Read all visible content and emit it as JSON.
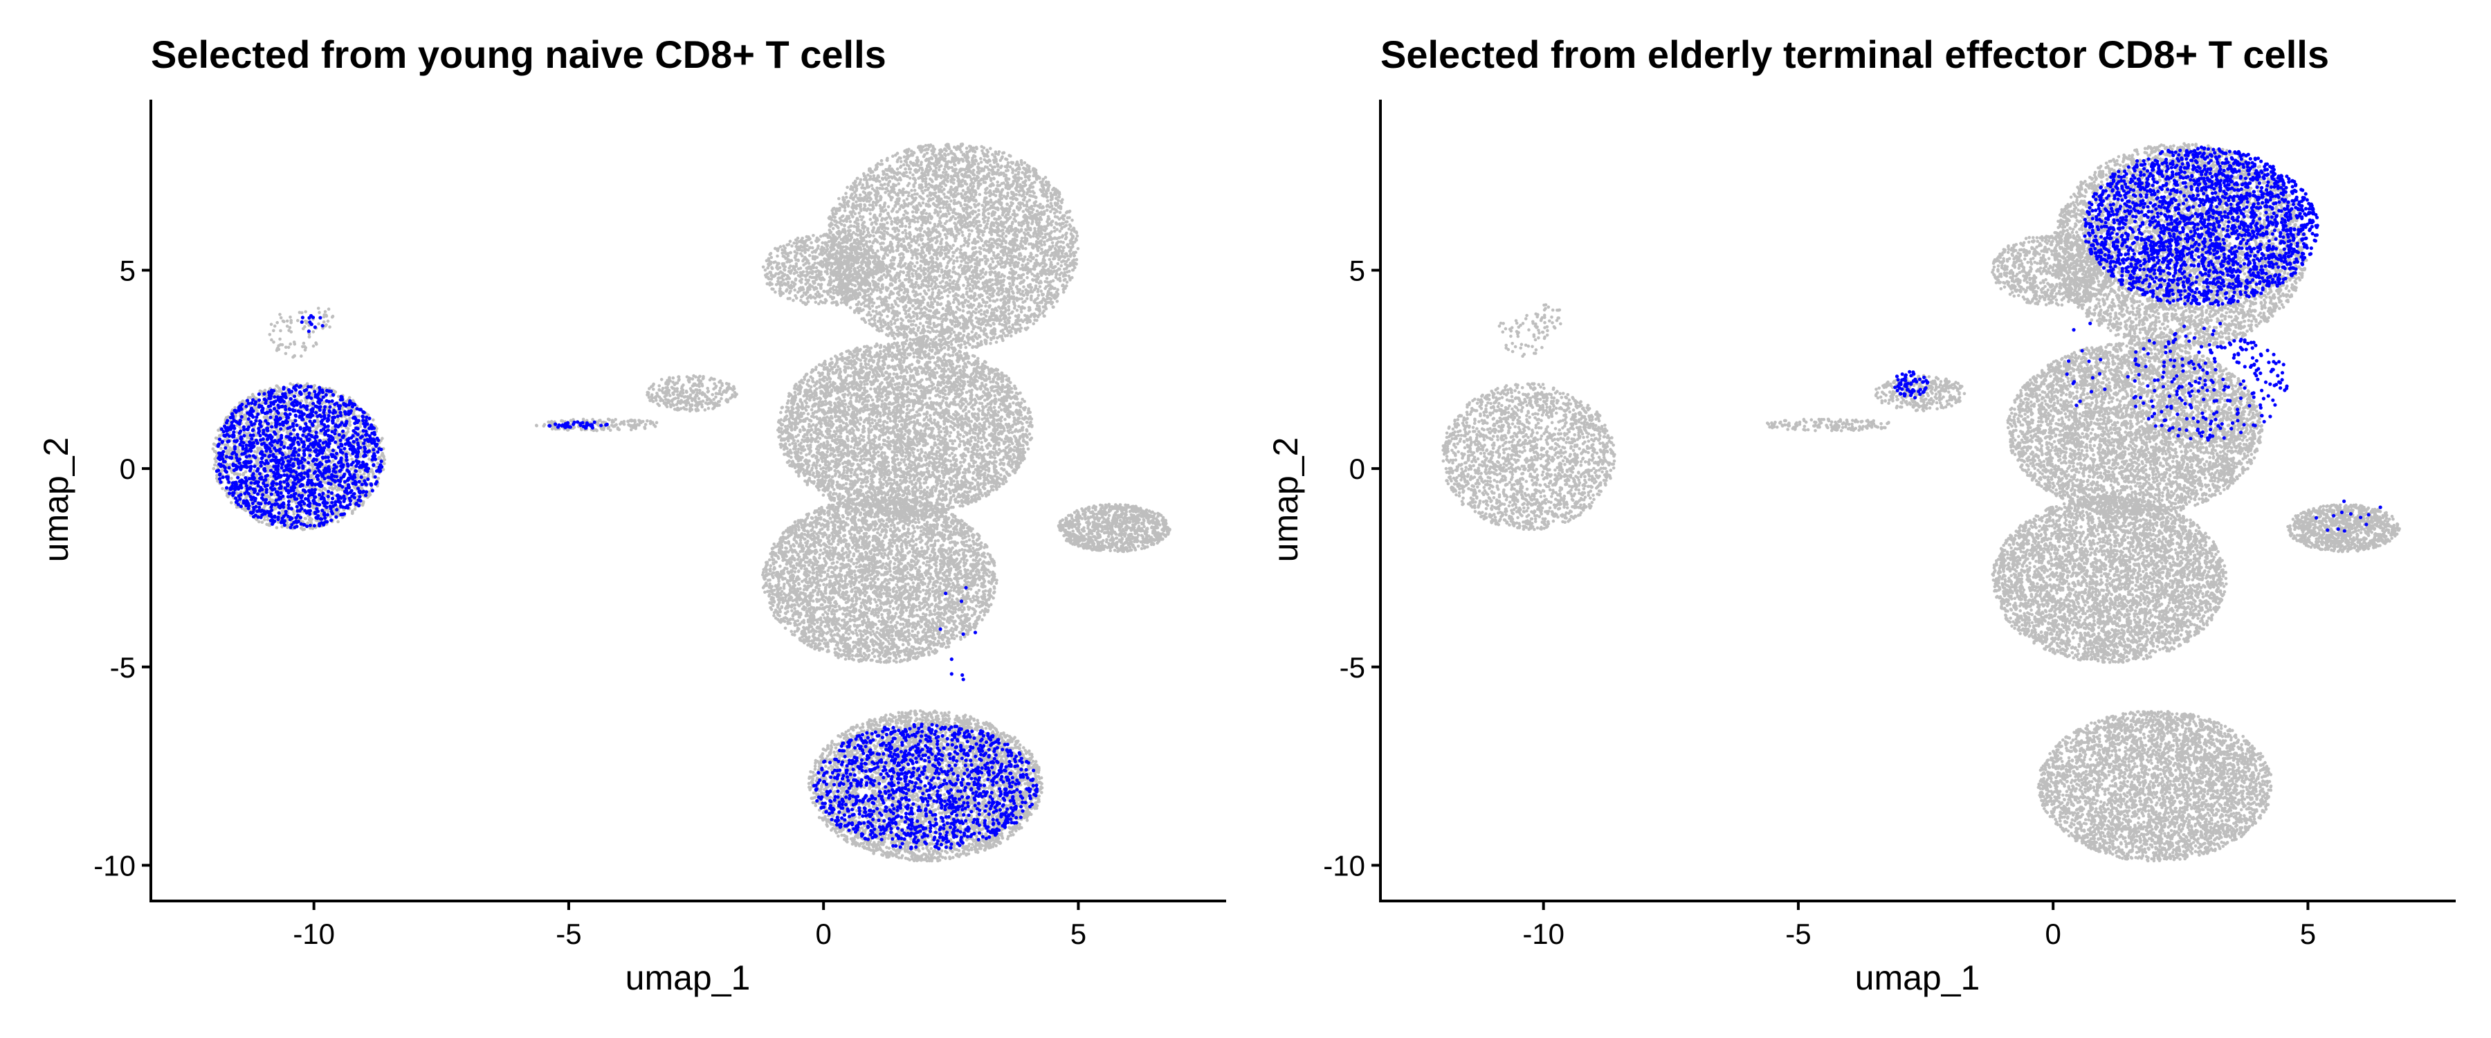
{
  "chart_data": [
    {
      "type": "scatter",
      "title": "Selected from young naive CD8+ T cells",
      "xlabel": "umap_1",
      "ylabel": "umap_2",
      "xlim": [
        -13.2,
        7.9
      ],
      "ylim": [
        -10.9,
        9.3
      ],
      "xticks": [
        -10,
        -5,
        0,
        5
      ],
      "xtick_labels": [
        "-10",
        "-5",
        "0",
        "5"
      ],
      "yticks": [
        -10,
        -5,
        0,
        5
      ],
      "ytick_labels": [
        "-10",
        "-5",
        "0",
        "5"
      ],
      "grid": false,
      "legend": "none",
      "colors": {
        "background_cells": "#bebebe",
        "selected_cells": "#0000ff"
      },
      "series": [
        {
          "role": "all_cells",
          "clusters": [
            {
              "cx": -10.3,
              "cy": 0.3,
              "rx": 1.7,
              "ry": 1.85,
              "n": 2000
            },
            {
              "cx": -10.4,
              "cy": 3.4,
              "rx": 0.5,
              "ry": 0.6,
              "n": 60
            },
            {
              "cx": -9.9,
              "cy": 3.8,
              "rx": 0.3,
              "ry": 0.35,
              "n": 25
            },
            {
              "cx": 2.5,
              "cy": 5.6,
              "rx": 2.5,
              "ry": 2.6,
              "n": 5000
            },
            {
              "cx": 0.0,
              "cy": 5.0,
              "rx": 1.2,
              "ry": 0.9,
              "n": 800
            },
            {
              "cx": 1.6,
              "cy": 1.0,
              "rx": 2.5,
              "ry": 2.2,
              "n": 5000
            },
            {
              "cx": 1.1,
              "cy": -2.8,
              "rx": 2.3,
              "ry": 2.1,
              "n": 4500
            },
            {
              "cx": 2.0,
              "cy": -8.0,
              "rx": 2.3,
              "ry": 1.9,
              "n": 4000
            },
            {
              "cx": 5.7,
              "cy": -1.5,
              "rx": 1.1,
              "ry": 0.6,
              "n": 900
            },
            {
              "cx": -2.6,
              "cy": 1.9,
              "rx": 0.9,
              "ry": 0.45,
              "n": 300
            },
            {
              "cx": -4.4,
              "cy": 1.1,
              "rx": 1.3,
              "ry": 0.15,
              "n": 150
            }
          ]
        },
        {
          "role": "selected_cells",
          "clusters": [
            {
              "cx": -10.3,
              "cy": 0.3,
              "rx": 1.65,
              "ry": 1.8,
              "n": 1500
            },
            {
              "cx": -10.0,
              "cy": 3.7,
              "rx": 0.3,
              "ry": 0.3,
              "n": 12
            },
            {
              "cx": 2.0,
              "cy": -8.0,
              "rx": 2.2,
              "ry": 1.6,
              "n": 1300
            },
            {
              "cx": -4.8,
              "cy": 1.1,
              "rx": 0.6,
              "ry": 0.08,
              "n": 40
            },
            {
              "cx": 2.6,
              "cy": -4.2,
              "rx": 0.4,
              "ry": 1.4,
              "n": 10
            }
          ]
        }
      ]
    },
    {
      "type": "scatter",
      "title": "Selected from elderly terminal effector CD8+ T cells",
      "xlabel": "umap_1",
      "ylabel": "umap_2",
      "xlim": [
        -13.2,
        7.9
      ],
      "ylim": [
        -10.9,
        9.3
      ],
      "xticks": [
        -10,
        -5,
        0,
        5
      ],
      "xtick_labels": [
        "-10",
        "-5",
        "0",
        "5"
      ],
      "yticks": [
        -10,
        -5,
        0,
        5
      ],
      "ytick_labels": [
        "-10",
        "-5",
        "0",
        "5"
      ],
      "grid": false,
      "legend": "none",
      "colors": {
        "background_cells": "#bebebe",
        "selected_cells": "#0000ff"
      },
      "series": [
        {
          "role": "all_cells",
          "clusters": [
            {
              "cx": -10.3,
              "cy": 0.3,
              "rx": 1.7,
              "ry": 1.85,
              "n": 2000
            },
            {
              "cx": -10.4,
              "cy": 3.4,
              "rx": 0.5,
              "ry": 0.6,
              "n": 60
            },
            {
              "cx": -9.9,
              "cy": 3.8,
              "rx": 0.3,
              "ry": 0.35,
              "n": 25
            },
            {
              "cx": 2.5,
              "cy": 5.6,
              "rx": 2.5,
              "ry": 2.6,
              "n": 5000
            },
            {
              "cx": 0.0,
              "cy": 5.0,
              "rx": 1.2,
              "ry": 0.9,
              "n": 800
            },
            {
              "cx": 1.6,
              "cy": 1.0,
              "rx": 2.5,
              "ry": 2.2,
              "n": 5000
            },
            {
              "cx": 1.1,
              "cy": -2.8,
              "rx": 2.3,
              "ry": 2.1,
              "n": 4500
            },
            {
              "cx": 2.0,
              "cy": -8.0,
              "rx": 2.3,
              "ry": 1.9,
              "n": 4000
            },
            {
              "cx": 5.7,
              "cy": -1.5,
              "rx": 1.1,
              "ry": 0.6,
              "n": 900
            },
            {
              "cx": -2.6,
              "cy": 1.9,
              "rx": 0.9,
              "ry": 0.45,
              "n": 300
            },
            {
              "cx": -4.4,
              "cy": 1.1,
              "rx": 1.3,
              "ry": 0.15,
              "n": 150
            }
          ]
        },
        {
          "role": "selected_cells",
          "clusters": [
            {
              "cx": 2.9,
              "cy": 6.1,
              "rx": 2.3,
              "ry": 2.0,
              "n": 2200
            },
            {
              "cx": 3.0,
              "cy": 2.2,
              "rx": 1.6,
              "ry": 1.5,
              "n": 250
            },
            {
              "cx": -2.8,
              "cy": 2.1,
              "rx": 0.35,
              "ry": 0.35,
              "n": 60
            },
            {
              "cx": 5.8,
              "cy": -1.2,
              "rx": 0.7,
              "ry": 0.5,
              "n": 12
            },
            {
              "cx": 0.6,
              "cy": 2.5,
              "rx": 0.5,
              "ry": 1.2,
              "n": 15
            }
          ]
        }
      ]
    }
  ]
}
